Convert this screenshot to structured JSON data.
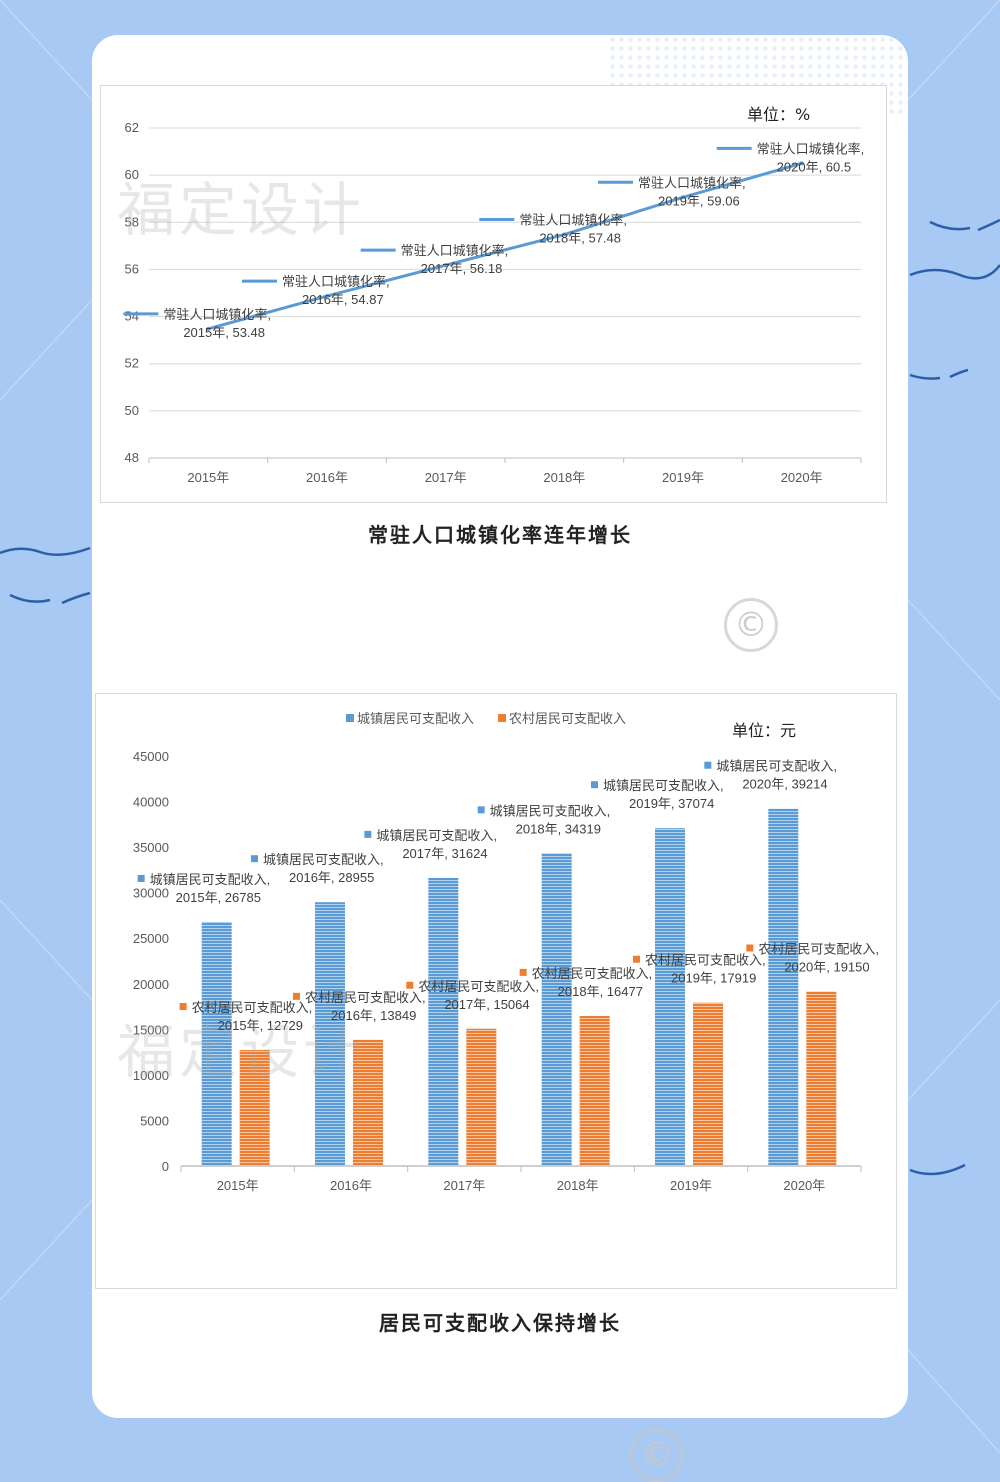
{
  "colors": {
    "background": "#a9c9f5",
    "line_series": "#5b9bd5",
    "urban": "#5b9bd5",
    "rural": "#ed7d31"
  },
  "watermark_text": "福定设计",
  "copyright_symbol": "©",
  "chart_data": [
    {
      "type": "line",
      "title": "常驻人口城镇化率连年增长",
      "unit_label": "单位：%",
      "categories": [
        "2015年",
        "2016年",
        "2017年",
        "2018年",
        "2019年",
        "2020年"
      ],
      "series": [
        {
          "name": "常驻人口城镇化率",
          "values": [
            53.48,
            54.87,
            56.18,
            57.48,
            59.06,
            60.5
          ]
        }
      ],
      "ylim": [
        48,
        62
      ],
      "yticks": [
        48,
        50,
        52,
        54,
        56,
        58,
        60,
        62
      ],
      "grid": true,
      "data_labels": true
    },
    {
      "type": "bar",
      "title": "居民可支配收入保持增长",
      "unit_label": "单位：元",
      "categories": [
        "2015年",
        "2016年",
        "2017年",
        "2018年",
        "2019年",
        "2020年"
      ],
      "series": [
        {
          "name": "城镇居民可支配收入",
          "values": [
            26785,
            28955,
            31624,
            34319,
            37074,
            39214
          ]
        },
        {
          "name": "农村居民可支配收入",
          "values": [
            12729,
            13849,
            15064,
            16477,
            17919,
            19150
          ]
        }
      ],
      "ylim": [
        0,
        45000
      ],
      "yticks": [
        0,
        5000,
        10000,
        15000,
        20000,
        25000,
        30000,
        35000,
        40000,
        45000
      ],
      "legend": "top",
      "data_labels": true
    }
  ]
}
